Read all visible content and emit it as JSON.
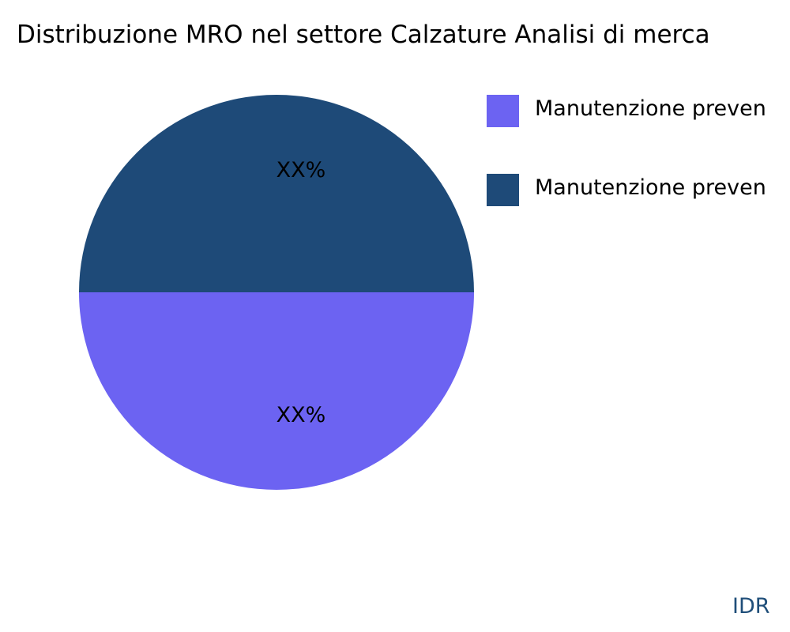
{
  "chart_data": {
    "type": "pie",
    "title": "Distribuzione MRO nel settore Calzature Analisi di merca",
    "slices": [
      {
        "label": "Manutenzione preven",
        "value": 50,
        "data_label": "XX%",
        "color": "#1e4a78"
      },
      {
        "label": "Manutenzione preven",
        "value": 50,
        "data_label": "XX%",
        "color": "#6c63f2"
      }
    ],
    "legend": {
      "placement": "top-right",
      "entries": [
        {
          "label": "Manutenzione preven",
          "color": "#6c63f2"
        },
        {
          "label": "Manutenzione preven",
          "color": "#1e4a78"
        }
      ]
    }
  },
  "watermark": "IDR"
}
